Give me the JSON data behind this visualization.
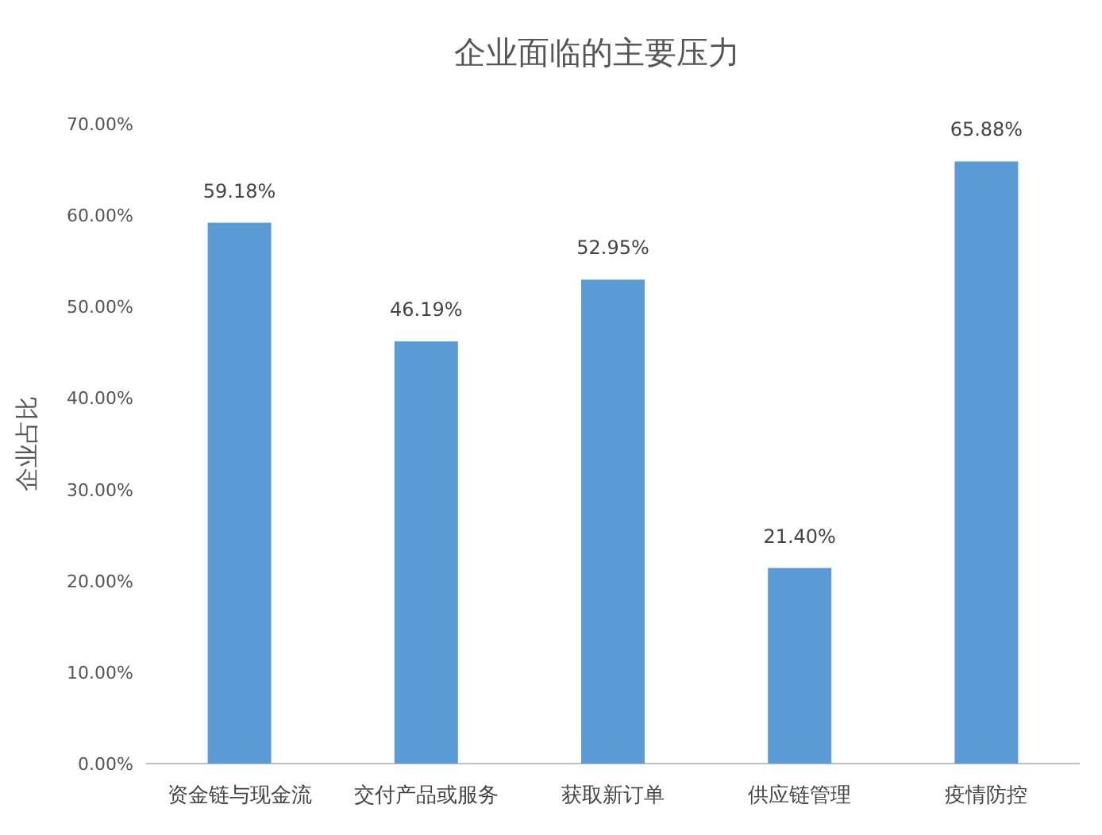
{
  "chart_data": {
    "type": "bar",
    "title": "企业面临的主要压力",
    "ylabel": "企业占比",
    "categories": [
      "资金链与现金流",
      "交付产品或服务",
      "获取新订单",
      "供应链管理",
      "疫情防控"
    ],
    "values": [
      59.18,
      46.19,
      52.95,
      21.4,
      65.88
    ],
    "value_labels": [
      "59.18%",
      "46.19%",
      "52.95%",
      "21.40%",
      "65.88%"
    ],
    "color": "#5b9bd5",
    "ylim": [
      0,
      70
    ],
    "yticks": [
      {
        "value": 0,
        "label": "0.00%"
      },
      {
        "value": 10,
        "label": "10.00%"
      },
      {
        "value": 20,
        "label": "20.00%"
      },
      {
        "value": 30,
        "label": "30.00%"
      },
      {
        "value": 40,
        "label": "40.00%"
      },
      {
        "value": 50,
        "label": "50.00%"
      },
      {
        "value": 60,
        "label": "60.00%"
      },
      {
        "value": 70,
        "label": "70.00%"
      }
    ],
    "grid": false
  }
}
